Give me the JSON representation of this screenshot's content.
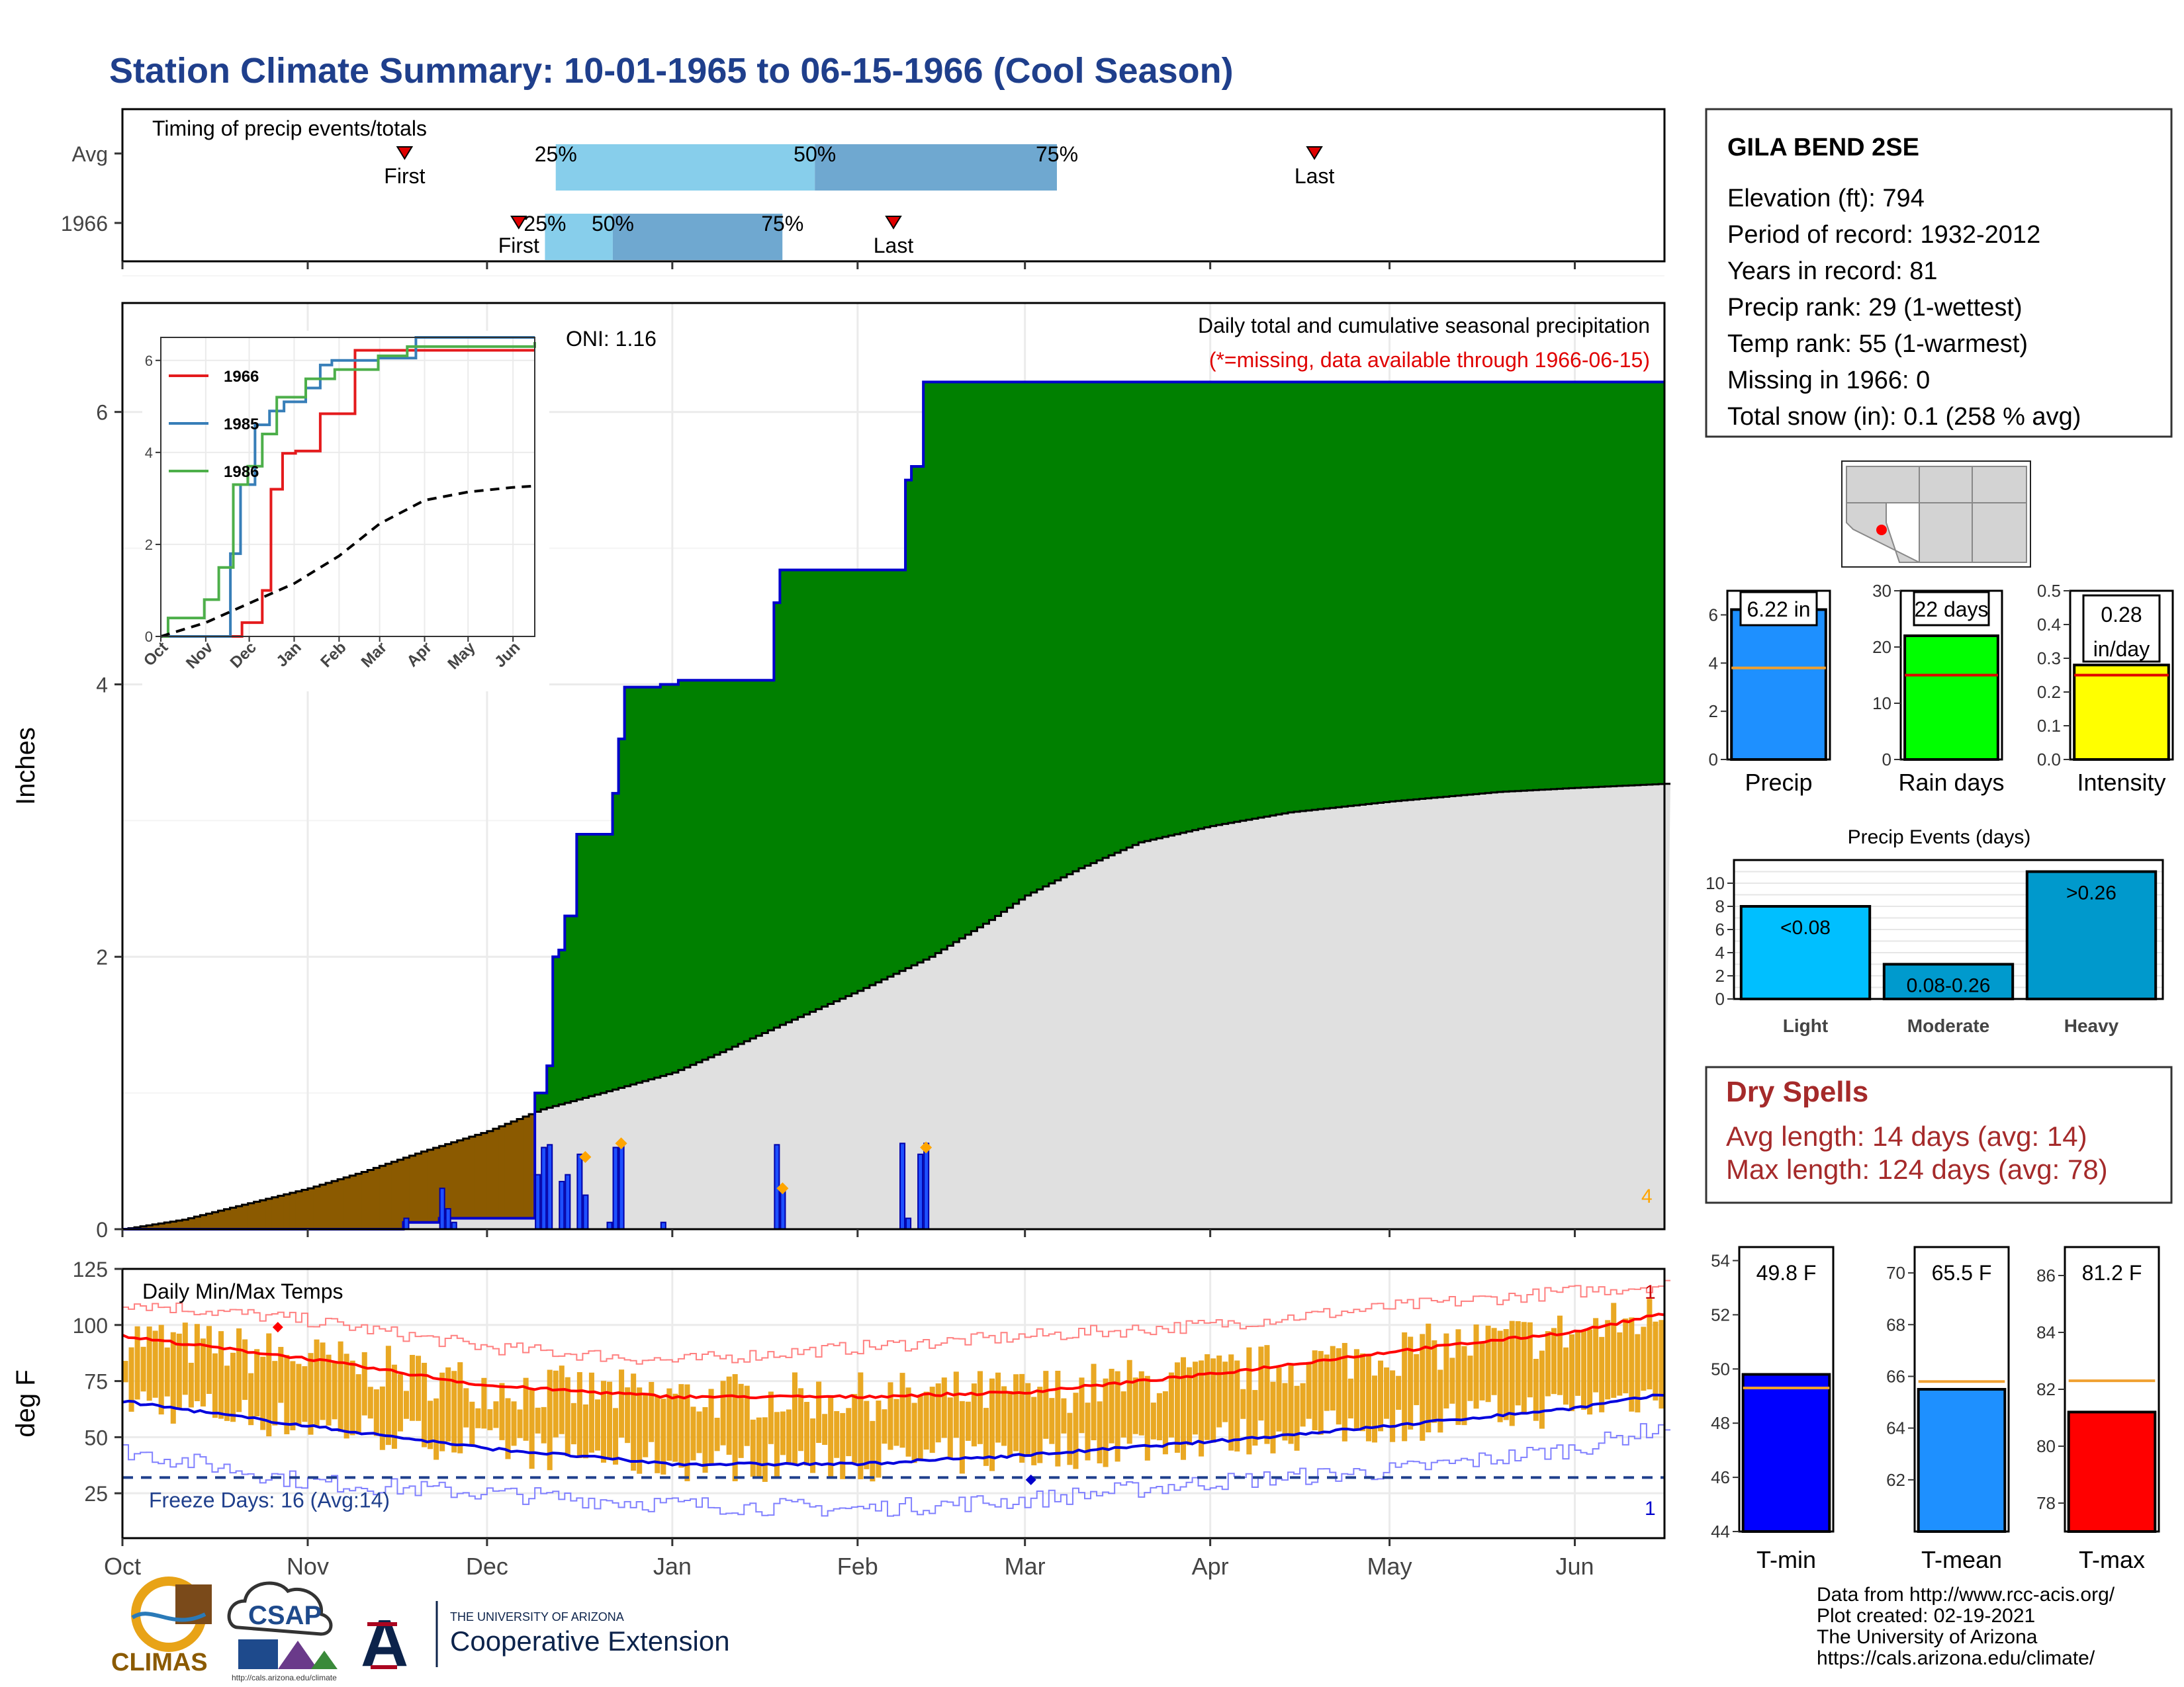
{
  "page": {
    "title": "Station Climate Summary: 10-01-1965 to 06-15-1966 (Cool Season)",
    "credits": [
      "Data from http://www.rcc-acis.org/",
      "Plot created: 02-19-2021",
      "The University of Arizona",
      "https://cals.arizona.edu/climate/"
    ],
    "logos": {
      "climas": "CLIMAS",
      "csap": "CSAP",
      "csap_url": "http://cals.arizona.edu/climate",
      "ua_line1": "THE UNIVERSITY OF ARIZONA",
      "ua_line2": "Cooperative Extension",
      "ua_letter": "A"
    }
  },
  "station": {
    "name": "GILA BEND 2SE",
    "lines": [
      "Elevation (ft): 794",
      "Period of record: 1932-2012",
      "Years in record: 81",
      "Precip rank: 29 (1-wettest)",
      "Temp rank: 55 (1-warmest)",
      "Missing in 1966: 0",
      "Total snow (in): 0.1 (258 % avg)"
    ]
  },
  "dry_spells": {
    "title": "Dry Spells",
    "avg": "Avg length: 14 days (avg: 14)",
    "max": "Max length: 124 days (avg: 78)"
  },
  "colors": {
    "title": "#1f3f8c",
    "green": "#008000",
    "brown": "#8b5a00",
    "grey": "#e0e0e0",
    "cum_line": "#0000cc",
    "orange": "#e8a317",
    "bar_light": "#87ceeb",
    "bar_dark": "#6fa8d0",
    "dry_red": "#a52a2a"
  },
  "chart_data": [
    {
      "type": "bar",
      "name": "timing",
      "title": "Timing of precip events/totals",
      "rows": [
        {
          "label": "Avg",
          "first": 0.183,
          "q25": 0.281,
          "q50": 0.449,
          "q75": 0.606,
          "last": 0.773,
          "first_label": "First",
          "last_label": "Last",
          "q25_label": "25%",
          "q50_label": "50%",
          "q75_label": "75%"
        },
        {
          "label": "1966",
          "first": 0.257,
          "q25": 0.274,
          "q50": 0.318,
          "q75": 0.428,
          "last": 0.5,
          "first_label": "First",
          "last_label": "Last",
          "q25_label": "25%",
          "q50_label": "50%",
          "q75_label": "75%"
        }
      ]
    },
    {
      "type": "area",
      "name": "cumulative_precip",
      "title": "Daily total and cumulative seasonal precipitation",
      "subtitle": "(*=missing, data available through 1966-06-15)",
      "oni": "ONI: 1.16",
      "ylabel": "Inches",
      "ylim": [
        0,
        6.8
      ],
      "yticks": [
        0,
        2,
        4,
        6
      ],
      "xticks": [
        "Oct",
        "Nov",
        "Dec",
        "Jan",
        "Feb",
        "Mar",
        "Apr",
        "May",
        "Jun"
      ],
      "xtick_days": [
        0,
        31,
        61,
        92,
        123,
        151,
        182,
        212,
        243
      ],
      "ndays": 258,
      "count_label": "4",
      "cumulative_1966": [
        [
          0,
          0
        ],
        [
          47,
          0.05
        ],
        [
          53,
          0.08
        ],
        [
          55,
          0.08
        ],
        [
          69,
          1.0
        ],
        [
          71,
          1.2
        ],
        [
          72,
          2.0
        ],
        [
          73,
          2.05
        ],
        [
          74,
          2.3
        ],
        [
          76,
          2.9
        ],
        [
          82,
          3.2
        ],
        [
          83,
          3.6
        ],
        [
          84,
          3.98
        ],
        [
          90,
          4.0
        ],
        [
          93,
          4.03
        ],
        [
          108,
          4.03
        ],
        [
          109,
          4.6
        ],
        [
          110,
          4.84
        ],
        [
          130,
          4.84
        ],
        [
          131,
          5.5
        ],
        [
          132,
          5.6
        ],
        [
          134,
          6.22
        ],
        [
          258,
          6.22
        ]
      ],
      "normal_cumulative": [
        [
          0,
          0
        ],
        [
          10,
          0.07
        ],
        [
          20,
          0.18
        ],
        [
          31,
          0.3
        ],
        [
          40,
          0.42
        ],
        [
          50,
          0.57
        ],
        [
          61,
          0.72
        ],
        [
          70,
          0.88
        ],
        [
          80,
          1.0
        ],
        [
          92,
          1.15
        ],
        [
          100,
          1.3
        ],
        [
          110,
          1.5
        ],
        [
          123,
          1.75
        ],
        [
          135,
          2.0
        ],
        [
          145,
          2.27
        ],
        [
          151,
          2.45
        ],
        [
          160,
          2.65
        ],
        [
          170,
          2.84
        ],
        [
          182,
          2.96
        ],
        [
          195,
          3.06
        ],
        [
          212,
          3.14
        ],
        [
          230,
          3.21
        ],
        [
          243,
          3.24
        ],
        [
          258,
          3.27
        ]
      ],
      "daily": [
        [
          47,
          0.08
        ],
        [
          53,
          0.3
        ],
        [
          54,
          0.15
        ],
        [
          55,
          0.05
        ],
        [
          69,
          0.4
        ],
        [
          70,
          0.6
        ],
        [
          71,
          0.62
        ],
        [
          73,
          0.35
        ],
        [
          74,
          0.4
        ],
        [
          76,
          0.55
        ],
        [
          77,
          0.25
        ],
        [
          81,
          0.05
        ],
        [
          82,
          0.6
        ],
        [
          83,
          0.63
        ],
        [
          90,
          0.05
        ],
        [
          109,
          0.62
        ],
        [
          110,
          0.3
        ],
        [
          130,
          0.63
        ],
        [
          131,
          0.08
        ],
        [
          133,
          0.55
        ],
        [
          134,
          0.63
        ]
      ],
      "daily_markers": [
        [
          77,
          0.53
        ],
        [
          83,
          0.63
        ],
        [
          110,
          0.3
        ],
        [
          134,
          0.6
        ]
      ]
    },
    {
      "type": "line",
      "name": "inset_cumulative",
      "xticks": [
        "Oct",
        "Nov",
        "Dec",
        "Jan",
        "Feb",
        "Mar",
        "Apr",
        "May",
        "Jun"
      ],
      "yticks": [
        0,
        2,
        4,
        6
      ],
      "ylim": [
        0,
        6.5
      ],
      "series": [
        {
          "name": "1966",
          "color": "#e41a1c",
          "points": [
            [
              0,
              0
            ],
            [
              55,
              0
            ],
            [
              56,
              0.3
            ],
            [
              70,
              1.0
            ],
            [
              76,
              3.2
            ],
            [
              84,
              3.98
            ],
            [
              93,
              4.03
            ],
            [
              108,
              4.03
            ],
            [
              110,
              4.84
            ],
            [
              130,
              4.84
            ],
            [
              134,
              6.22
            ],
            [
              258,
              6.22
            ]
          ]
        },
        {
          "name": "1985",
          "color": "#377eb8",
          "points": [
            [
              0,
              0
            ],
            [
              45,
              0
            ],
            [
              48,
              1.8
            ],
            [
              55,
              3.3
            ],
            [
              65,
              4.6
            ],
            [
              75,
              4.9
            ],
            [
              85,
              5.1
            ],
            [
              100,
              5.4
            ],
            [
              110,
              5.9
            ],
            [
              118,
              6.0
            ],
            [
              150,
              6.05
            ],
            [
              175,
              6.05
            ],
            [
              176,
              6.6
            ],
            [
              258,
              6.6
            ]
          ]
        },
        {
          "name": "1986",
          "color": "#4daf4a",
          "points": [
            [
              0,
              0
            ],
            [
              5,
              0.4
            ],
            [
              20,
              0.4
            ],
            [
              30,
              0.8
            ],
            [
              40,
              1.5
            ],
            [
              50,
              3.3
            ],
            [
              60,
              3.7
            ],
            [
              70,
              4.4
            ],
            [
              80,
              5.2
            ],
            [
              100,
              5.6
            ],
            [
              120,
              5.8
            ],
            [
              150,
              6.1
            ],
            [
              170,
              6.3
            ],
            [
              258,
              6.4
            ]
          ]
        },
        {
          "name": "",
          "color": "#000000",
          "dashed": true,
          "points": [
            [
              0,
              0
            ],
            [
              31,
              0.3
            ],
            [
              61,
              0.72
            ],
            [
              92,
              1.15
            ],
            [
              123,
              1.75
            ],
            [
              151,
              2.45
            ],
            [
              182,
              2.96
            ],
            [
              212,
              3.14
            ],
            [
              243,
              3.24
            ],
            [
              258,
              3.27
            ]
          ]
        }
      ]
    },
    {
      "type": "bar",
      "name": "summary_bars",
      "bars": [
        {
          "label": "Precip",
          "value": 6.22,
          "value_label": "6.22 in",
          "avg": 3.8,
          "ylim": [
            0,
            7
          ],
          "yticks": [
            0,
            2,
            4,
            6
          ],
          "color": "#1e90ff"
        },
        {
          "label": "Rain days",
          "value": 22,
          "value_label": "22 days",
          "avg": 15,
          "ylim": [
            0,
            30
          ],
          "yticks": [
            0,
            10,
            20,
            30
          ],
          "color": "#00ff00"
        },
        {
          "label": "Intensity",
          "value": 0.28,
          "value_label": "0.28 in/day",
          "avg": 0.25,
          "ylim": [
            0,
            0.5
          ],
          "yticks": [
            0.0,
            0.1,
            0.2,
            0.3,
            0.4,
            0.5
          ],
          "color": "#ffff00"
        }
      ]
    },
    {
      "type": "bar",
      "name": "precip_events",
      "title": "Precip Events (days)",
      "categories": [
        "Light",
        "Moderate",
        "Heavy"
      ],
      "values": [
        8,
        3,
        11
      ],
      "bar_labels": [
        "<0.08",
        "0.08-0.26",
        ">0.26"
      ],
      "colors": [
        "#00bfff",
        "#009acd",
        "#0099cc"
      ],
      "ylim": [
        0,
        12
      ],
      "yticks": [
        0,
        2,
        4,
        6,
        8,
        10
      ]
    },
    {
      "type": "line",
      "name": "daily_temps",
      "title": "Daily Min/Max Temps",
      "ylabel": "deg F",
      "ylim": [
        5,
        125
      ],
      "yticks": [
        25,
        50,
        75,
        100,
        125
      ],
      "freeze_line": 32,
      "freeze_label": "Freeze Days: 16 (Avg:14)",
      "record_high_count": "1",
      "record_low_count": "1",
      "normal_high": [
        [
          0,
          95
        ],
        [
          31,
          85
        ],
        [
          61,
          73
        ],
        [
          92,
          68
        ],
        [
          123,
          68
        ],
        [
          151,
          70
        ],
        [
          182,
          78
        ],
        [
          212,
          88
        ],
        [
          243,
          97
        ],
        [
          258,
          105
        ]
      ],
      "normal_low": [
        [
          0,
          66
        ],
        [
          31,
          55
        ],
        [
          61,
          45
        ],
        [
          92,
          38
        ],
        [
          123,
          38
        ],
        [
          151,
          42
        ],
        [
          182,
          48
        ],
        [
          212,
          55
        ],
        [
          243,
          63
        ],
        [
          258,
          69
        ]
      ],
      "record_high": [
        [
          0,
          110
        ],
        [
          31,
          102
        ],
        [
          61,
          90
        ],
        [
          92,
          84
        ],
        [
          123,
          90
        ],
        [
          151,
          95
        ],
        [
          182,
          100
        ],
        [
          212,
          108
        ],
        [
          243,
          115
        ],
        [
          258,
          118
        ]
      ],
      "record_low": [
        [
          0,
          44
        ],
        [
          31,
          30
        ],
        [
          61,
          25
        ],
        [
          92,
          20
        ],
        [
          123,
          18
        ],
        [
          151,
          22
        ],
        [
          182,
          30
        ],
        [
          212,
          35
        ],
        [
          243,
          45
        ],
        [
          258,
          55
        ]
      ]
    },
    {
      "type": "bar",
      "name": "temp_summary",
      "bars": [
        {
          "label": "T-min",
          "value": 49.8,
          "value_label": "49.8 F",
          "avg": 49.3,
          "ylim": [
            44,
            54.5
          ],
          "yticks": [
            44,
            46,
            48,
            50,
            52,
            54
          ],
          "color": "#0000ff"
        },
        {
          "label": "T-mean",
          "value": 65.5,
          "value_label": "65.5 F",
          "avg": 65.8,
          "ylim": [
            60,
            71
          ],
          "yticks": [
            62,
            64,
            66,
            68,
            70
          ],
          "color": "#1e90ff"
        },
        {
          "label": "T-max",
          "value": 81.2,
          "value_label": "81.2 F",
          "avg": 82.3,
          "ylim": [
            77,
            87
          ],
          "yticks": [
            78,
            80,
            82,
            84,
            86
          ],
          "color": "#ff0000"
        }
      ]
    }
  ]
}
